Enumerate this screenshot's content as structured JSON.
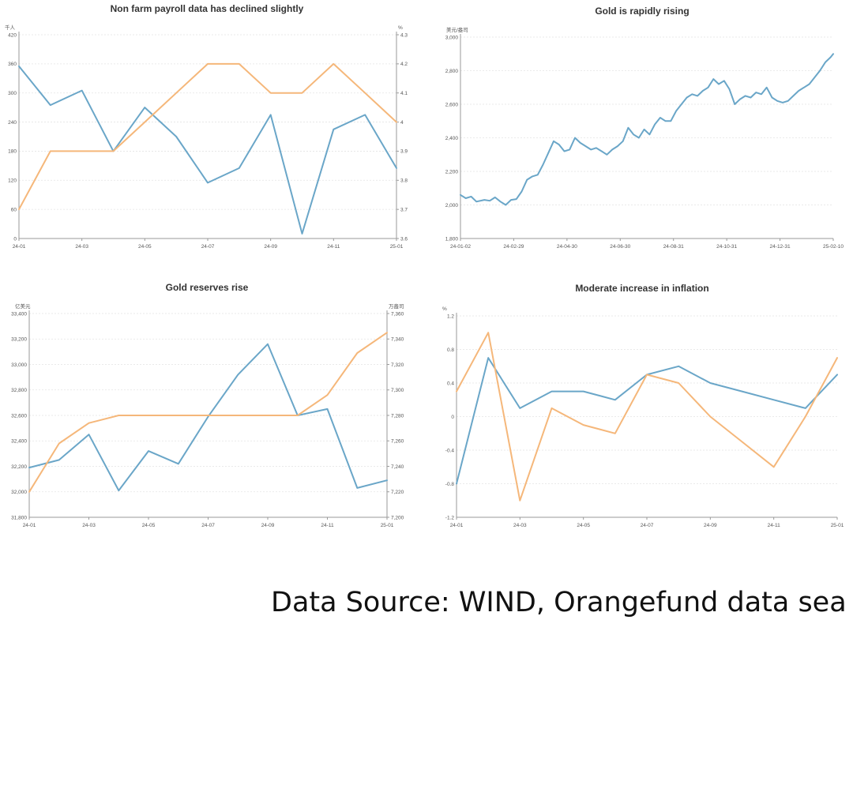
{
  "source_note": "Data Source: WIND, Orangefund data sea",
  "colors": {
    "blue": "#6aa6c8",
    "orange": "#f5b77a"
  },
  "chart_data": [
    {
      "type": "line",
      "title": "Non farm payroll data has declined slightly",
      "y_unit_left": "千人",
      "y_unit_right": "%",
      "ylim_left": [
        0,
        420
      ],
      "ylim_right": [
        3.6,
        4.3
      ],
      "yticks_left": [
        "0",
        "60",
        "120",
        "180",
        "240",
        "300",
        "360",
        "420"
      ],
      "yticks_right": [
        "3.6",
        "3.7",
        "3.8",
        "3.9",
        "4",
        "4.1",
        "4.2",
        "4.3"
      ],
      "x_ticks": [
        "24-01",
        "24-03",
        "24-05",
        "24-07",
        "24-09",
        "24-11",
        "25-01"
      ],
      "x": [
        "24-01",
        "24-02",
        "24-03",
        "24-04",
        "24-05",
        "24-06",
        "24-07",
        "24-08",
        "24-09",
        "24-10",
        "24-11",
        "24-12",
        "25-01"
      ],
      "series": [
        {
          "color": "blue",
          "axis": "left",
          "values": [
            355,
            275,
            305,
            180,
            270,
            210,
            115,
            145,
            255,
            10,
            225,
            255,
            145
          ]
        },
        {
          "color": "orange",
          "axis": "right",
          "values": [
            3.7,
            3.9,
            3.9,
            3.9,
            4.0,
            4.1,
            4.2,
            4.2,
            4.1,
            4.1,
            4.2,
            4.1,
            4.0
          ]
        }
      ]
    },
    {
      "type": "line",
      "title": "Gold is rapidly rising",
      "y_unit_left": "美元/盎司",
      "ylim_left": [
        1800,
        3000
      ],
      "yticks_left": [
        "1,800",
        "2,000",
        "2,200",
        "2,400",
        "2,600",
        "2,800",
        "3,000"
      ],
      "x_ticks": [
        "24-01-02",
        "24-02-29",
        "24-04-30",
        "24-06-30",
        "24-08-31",
        "24-10-31",
        "24-12-31",
        "25-02-10"
      ],
      "x_range": [
        0,
        7
      ],
      "series": [
        {
          "color": "blue",
          "axis": "left",
          "x": [
            0,
            0.1,
            0.2,
            0.3,
            0.45,
            0.55,
            0.65,
            0.75,
            0.85,
            0.95,
            1.05,
            1.15,
            1.25,
            1.35,
            1.45,
            1.55,
            1.65,
            1.75,
            1.85,
            1.95,
            2.05,
            2.15,
            2.25,
            2.35,
            2.45,
            2.55,
            2.65,
            2.75,
            2.85,
            2.95,
            3.05,
            3.15,
            3.25,
            3.35,
            3.45,
            3.55,
            3.65,
            3.75,
            3.85,
            3.95,
            4.05,
            4.15,
            4.25,
            4.35,
            4.45,
            4.55,
            4.65,
            4.75,
            4.85,
            4.95,
            5.05,
            5.15,
            5.25,
            5.35,
            5.45,
            5.55,
            5.65,
            5.75,
            5.85,
            5.95,
            6.05,
            6.15,
            6.25,
            6.35,
            6.45,
            6.55,
            6.65,
            6.75,
            6.85,
            6.95,
            7.0
          ],
          "values": [
            2060,
            2040,
            2050,
            2020,
            2030,
            2025,
            2045,
            2020,
            2000,
            2030,
            2035,
            2080,
            2150,
            2170,
            2180,
            2240,
            2310,
            2380,
            2360,
            2320,
            2330,
            2400,
            2370,
            2350,
            2330,
            2340,
            2320,
            2300,
            2330,
            2350,
            2380,
            2460,
            2420,
            2400,
            2450,
            2420,
            2480,
            2520,
            2500,
            2500,
            2560,
            2600,
            2640,
            2660,
            2650,
            2680,
            2700,
            2750,
            2720,
            2740,
            2690,
            2600,
            2630,
            2650,
            2640,
            2670,
            2660,
            2700,
            2640,
            2620,
            2610,
            2620,
            2650,
            2680,
            2700,
            2720,
            2760,
            2800,
            2850,
            2880,
            2900
          ]
        }
      ]
    },
    {
      "type": "line",
      "title": "Gold reserves rise",
      "y_unit_left": "亿美元",
      "y_unit_right": "万盎司",
      "ylim_left": [
        31800,
        33400
      ],
      "ylim_right": [
        7200,
        7360
      ],
      "yticks_left": [
        "31,800",
        "32,000",
        "32,200",
        "32,400",
        "32,600",
        "32,800",
        "33,000",
        "33,200",
        "33,400"
      ],
      "yticks_right": [
        "7,200",
        "7,220",
        "7,240",
        "7,260",
        "7,280",
        "7,300",
        "7,320",
        "7,340",
        "7,360"
      ],
      "x_ticks": [
        "24-01",
        "24-03",
        "24-05",
        "24-07",
        "24-09",
        "24-11",
        "25-01"
      ],
      "x": [
        "24-01",
        "24-02",
        "24-03",
        "24-04",
        "24-05",
        "24-06",
        "24-07",
        "24-08",
        "24-09",
        "24-10",
        "24-11",
        "24-12",
        "25-01"
      ],
      "series": [
        {
          "color": "blue",
          "axis": "left",
          "values": [
            32190,
            32250,
            32450,
            32010,
            32320,
            32220,
            32590,
            32920,
            33160,
            32600,
            32650,
            32030,
            32090
          ]
        },
        {
          "color": "orange",
          "axis": "right",
          "values": [
            7220,
            7258,
            7274,
            7280,
            7280,
            7280,
            7280,
            7280,
            7280,
            7280,
            7296,
            7329,
            7345
          ]
        }
      ]
    },
    {
      "type": "line",
      "title": "Moderate increase in inflation",
      "y_unit_left": "%",
      "ylim_left": [
        -1.2,
        1.2
      ],
      "yticks_left": [
        "-1.2",
        "-0.8",
        "-0.4",
        "0",
        "0.4",
        "0.8",
        "1.2"
      ],
      "x_ticks": [
        "24-01",
        "24-03",
        "24-05",
        "24-07",
        "24-09",
        "24-11",
        "25-01"
      ],
      "x": [
        "24-01",
        "24-02",
        "24-03",
        "24-04",
        "24-05",
        "24-06",
        "24-07",
        "24-08",
        "24-09",
        "24-10",
        "24-11",
        "24-12",
        "25-01"
      ],
      "series": [
        {
          "color": "blue",
          "axis": "left",
          "values": [
            -0.8,
            0.7,
            0.1,
            0.3,
            0.3,
            0.2,
            0.5,
            0.6,
            0.4,
            0.3,
            0.2,
            0.1,
            0.5
          ]
        },
        {
          "color": "orange",
          "axis": "left",
          "values": [
            0.3,
            1.0,
            -1.0,
            0.1,
            -0.1,
            -0.2,
            0.5,
            0.4,
            0.0,
            -0.3,
            -0.6,
            0.0,
            0.7
          ]
        }
      ]
    }
  ]
}
